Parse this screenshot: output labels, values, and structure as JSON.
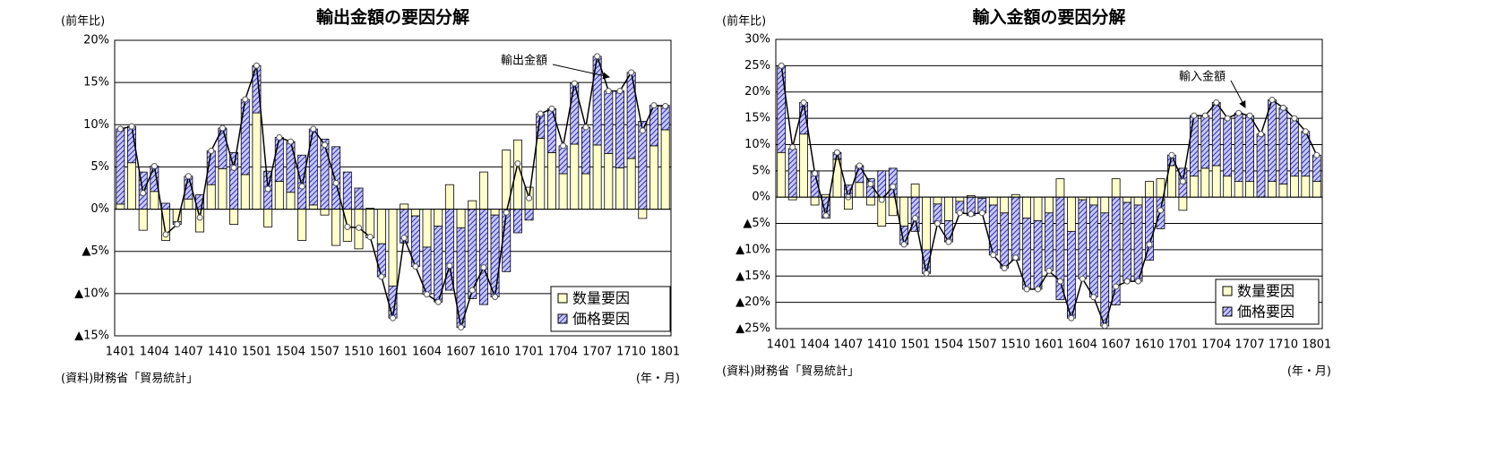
{
  "chart_data": [
    {
      "type": "bar",
      "title": "輸出金額の要因分解",
      "y_label": "(前年比)",
      "source": "(資料)財務省「貿易統計」",
      "x_unit": "(年・月)",
      "categories": [
        "1401",
        null,
        null,
        "1404",
        null,
        null,
        "1407",
        null,
        null,
        "1410",
        null,
        null,
        "1501",
        null,
        null,
        "1504",
        null,
        null,
        "1507",
        null,
        null,
        "1510",
        null,
        null,
        "1601",
        null,
        null,
        "1604",
        null,
        null,
        "1607",
        null,
        null,
        "1610",
        null,
        null,
        "1701",
        null,
        null,
        "1704",
        null,
        null,
        "1707",
        null,
        null,
        "1710",
        null,
        null,
        "1801"
      ],
      "series": [
        {
          "name": "数量要因",
          "color": "#ffffcc",
          "values": [
            0.6,
            5.5,
            -2.5,
            2.1,
            -3.7,
            -1.5,
            1.2,
            -2.7,
            2.9,
            4.8,
            -1.8,
            4.1,
            11.4,
            -2.1,
            3.3,
            2.0,
            -3.7,
            0.5,
            -0.7,
            -4.3,
            -3.8,
            -4.7,
            -3.4,
            -4.1,
            -9.1,
            0.6,
            -0.8,
            -4.5,
            -2.0,
            2.9,
            -2.2,
            1.0,
            4.4,
            -0.7,
            7.0,
            8.2,
            2.6,
            8.4,
            6.7,
            4.2,
            7.7,
            4.2,
            7.6,
            6.6,
            4.9,
            6.0,
            -1.1,
            7.5,
            9.4
          ]
        },
        {
          "name": "価格要因",
          "color": "#4040cc",
          "values": [
            8.9,
            4.3,
            4.4,
            3.0,
            0.7,
            -0.3,
            2.7,
            1.7,
            4.0,
            4.8,
            6.7,
            8.9,
            5.6,
            4.5,
            5.2,
            6.0,
            6.4,
            9.0,
            8.3,
            7.4,
            4.4,
            2.5,
            0.1,
            -3.9,
            -3.8,
            -4.0,
            -6.0,
            -5.6,
            -9.0,
            -9.6,
            -11.8,
            -10.6,
            -11.3,
            -9.7,
            -7.4,
            -2.8,
            -1.3,
            2.9,
            5.2,
            3.3,
            7.2,
            5.5,
            10.5,
            7.4,
            9.1,
            10.2,
            10.4,
            4.8,
            2.9
          ]
        },
        {
          "name": "輸出金額",
          "type": "line",
          "color": "#000000",
          "values": [
            9.5,
            9.8,
            1.9,
            5.1,
            -3.0,
            -1.8,
            3.9,
            -1.0,
            6.9,
            9.6,
            4.9,
            13.0,
            17.0,
            2.4,
            8.5,
            8.0,
            2.7,
            9.5,
            7.6,
            3.1,
            -2.1,
            -2.2,
            -3.3,
            -8.0,
            -12.9,
            -3.4,
            -6.8,
            -10.1,
            -11.0,
            -6.7,
            -14.0,
            -9.6,
            -6.9,
            -10.4,
            -0.4,
            5.4,
            1.3,
            11.3,
            11.9,
            7.5,
            14.9,
            9.7,
            18.1,
            14.0,
            14.0,
            16.2,
            9.3,
            12.3,
            12.2
          ]
        }
      ],
      "stacked": true,
      "legend": "lower right",
      "grid": true,
      "ylim": [
        -15,
        20
      ],
      "yticks": [
        {
          "value": -15,
          "label": "▲15%"
        },
        {
          "value": -10,
          "label": "▲10%"
        },
        {
          "value": -5,
          "label": "▲5%"
        },
        {
          "value": 0,
          "label": "0%"
        },
        {
          "value": 5,
          "label": "5%"
        },
        {
          "value": 10,
          "label": "10%"
        },
        {
          "value": 15,
          "label": "15%"
        },
        {
          "value": 20,
          "label": "20%"
        }
      ]
    },
    {
      "type": "bar",
      "title": "輸入金額の要因分解",
      "y_label": "(前年比)",
      "source": "(資料)財務省「貿易統計」",
      "x_unit": "(年・月)",
      "categories": [
        "1401",
        null,
        null,
        "1404",
        null,
        null,
        "1407",
        null,
        null,
        "1410",
        null,
        null,
        "1501",
        null,
        null,
        "1504",
        null,
        null,
        "1507",
        null,
        null,
        "1510",
        null,
        null,
        "1601",
        null,
        null,
        "1604",
        null,
        null,
        "1607",
        null,
        null,
        "1610",
        null,
        null,
        "1701",
        null,
        null,
        "1704",
        null,
        null,
        "1707",
        null,
        null,
        "1710",
        null,
        null,
        "1801"
      ],
      "series": [
        {
          "name": "数量要因",
          "color": "#ffffcc",
          "values": [
            8.5,
            -0.5,
            12,
            -1.5,
            0.5,
            7.2,
            -2.3,
            2.8,
            -1.5,
            -5.5,
            -3.5,
            -5.5,
            2.5,
            -10,
            -1.3,
            -4.5,
            -0.8,
            0.3,
            -0.2,
            -1.5,
            -3,
            0.5,
            -4,
            -4.5,
            -3,
            3.5,
            -6.5,
            -0.5,
            -1.5,
            -3,
            3.5,
            -1,
            -1.5,
            3,
            3.5,
            6,
            -2.5,
            4,
            5.5,
            6,
            4,
            3,
            3,
            0,
            3,
            2.5,
            4,
            4,
            3
          ]
        },
        {
          "name": "価格要因",
          "color": "#4040cc",
          "values": [
            16.5,
            9.2,
            6,
            5,
            -4,
            1.3,
            2.3,
            3.2,
            3.5,
            5,
            5.5,
            -3.5,
            -6.5,
            -4.5,
            -3.7,
            -4,
            -2.2,
            -3.5,
            -2.8,
            -9.5,
            -10.5,
            -12,
            -13.5,
            -13,
            -11,
            -19.5,
            -16.5,
            -15,
            -17.5,
            -21.5,
            -20.5,
            -15,
            -14.5,
            -12,
            -6,
            2,
            5.5,
            11.5,
            10,
            12,
            11,
            13,
            12.5,
            12,
            15.5,
            14.5,
            11,
            8.5,
            5
          ]
        },
        {
          "name": "輸入金額",
          "type": "line",
          "color": "#000000",
          "values": [
            25,
            9.5,
            18,
            4.5,
            -3.5,
            8.5,
            0,
            6,
            2.5,
            -0.5,
            2,
            -9,
            -4,
            -14.5,
            -5,
            -8.5,
            -3,
            -3.2,
            -3,
            -11,
            -13.5,
            -11.5,
            -17.5,
            -17.5,
            -14,
            -16,
            -23,
            -15.5,
            -19,
            -24.5,
            -17,
            -16,
            -16,
            -9,
            -2.5,
            8,
            3,
            15.5,
            15.5,
            18,
            15,
            16,
            15.5,
            12,
            18.5,
            17,
            15,
            12.5,
            8
          ]
        }
      ],
      "stacked": true,
      "legend": "lower right",
      "grid": true,
      "ylim": [
        -25,
        30
      ],
      "yticks": [
        {
          "value": -25,
          "label": "▲25%"
        },
        {
          "value": -20,
          "label": "▲20%"
        },
        {
          "value": -15,
          "label": "▲15%"
        },
        {
          "value": -10,
          "label": "▲10%"
        },
        {
          "value": -5,
          "label": "▲5%"
        },
        {
          "value": 0,
          "label": "0%"
        },
        {
          "value": 5,
          "label": "5%"
        },
        {
          "value": 10,
          "label": "10%"
        },
        {
          "value": 15,
          "label": "15%"
        },
        {
          "value": 20,
          "label": "20%"
        },
        {
          "value": 25,
          "label": "25%"
        },
        {
          "value": 30,
          "label": "30%"
        }
      ]
    }
  ]
}
